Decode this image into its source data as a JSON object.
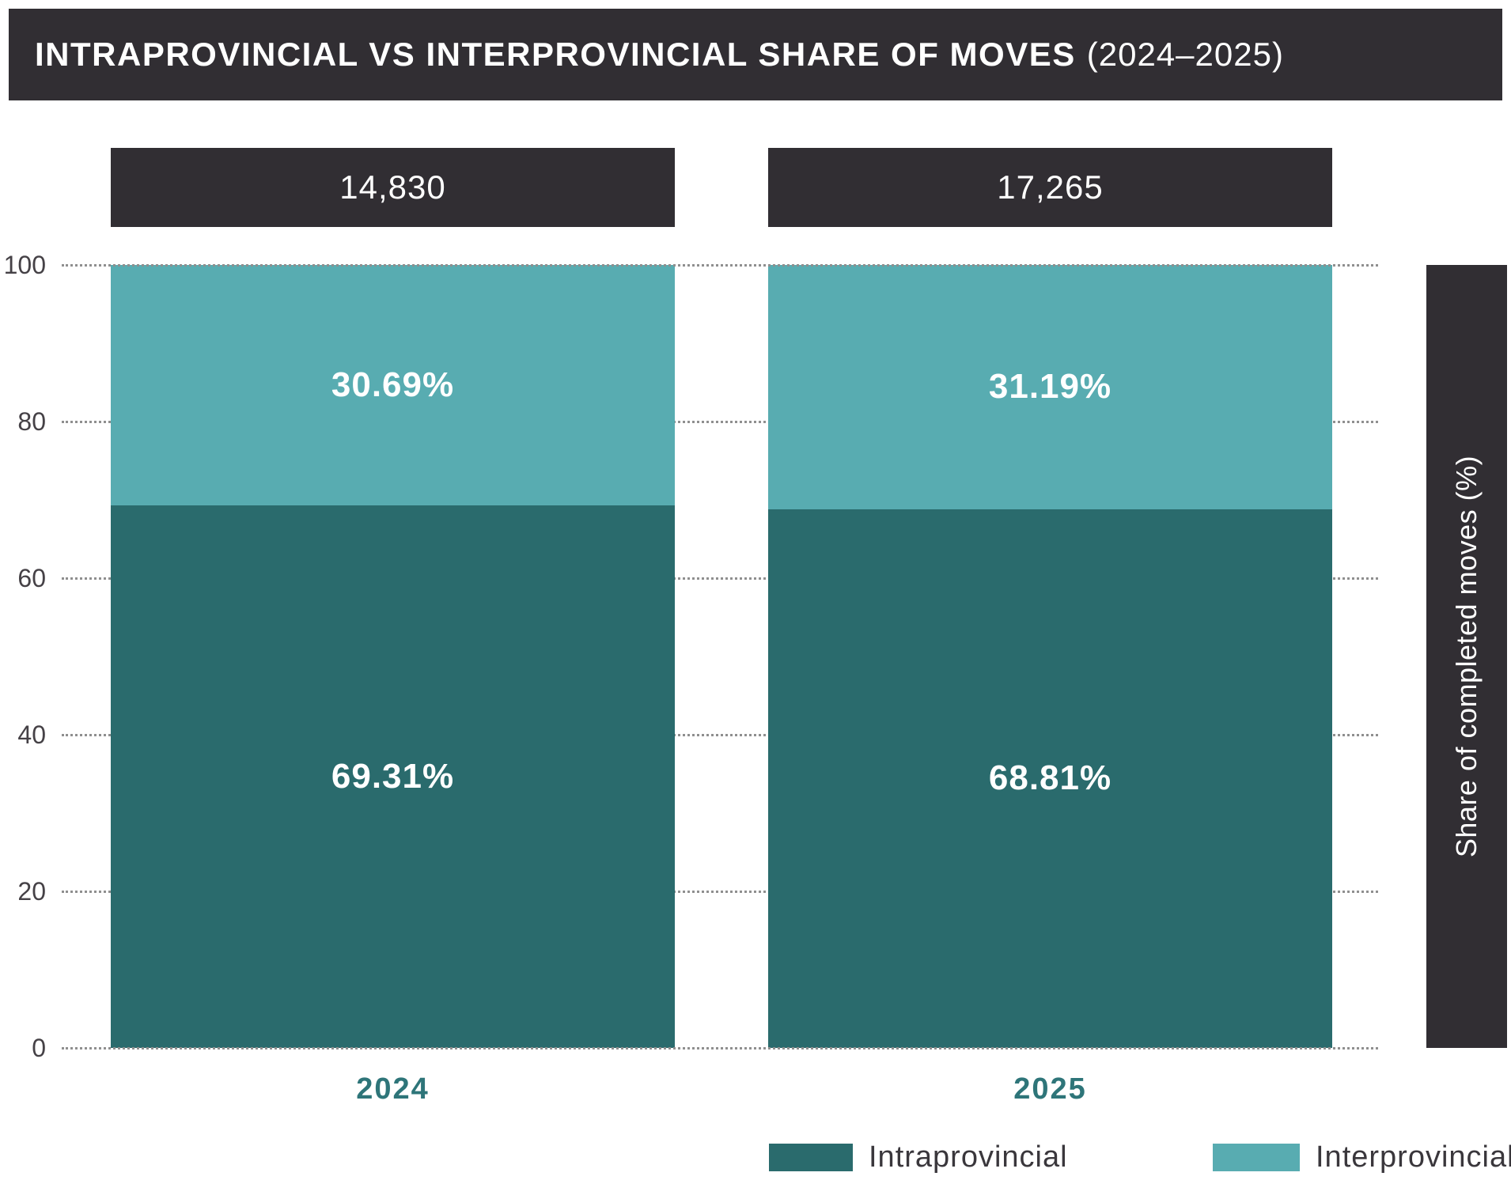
{
  "header": {
    "title": "INTRAPROVINCIAL VS INTERPROVINCIAL SHARE OF MOVES",
    "subtitle": "(2024–2025)"
  },
  "y_axis": {
    "label": "Share of completed moves (%)",
    "ticks": [
      "100",
      "80",
      "60",
      "40",
      "20",
      "0"
    ]
  },
  "bars": [
    {
      "year": "2024",
      "total": "14,830",
      "inter_label": "30.69%",
      "intra_label": "69.31%"
    },
    {
      "year": "2025",
      "total": "17,265",
      "inter_label": "31.19%",
      "intra_label": "68.81%"
    }
  ],
  "legend": {
    "items": [
      {
        "label": "Intraprovincial",
        "color": "#2a6b6d"
      },
      {
        "label": "Interprovincial",
        "color": "#58acb1"
      }
    ]
  },
  "colors": {
    "header_bg": "#312e33",
    "intraprovincial": "#2a6b6d",
    "interprovincial": "#58acb1",
    "year_label": "#2e7579",
    "gridline": "#8f8f8f",
    "background": "#ffffff"
  },
  "chart_data": {
    "type": "bar",
    "stacked": true,
    "title": "INTRAPROVINCIAL VS INTERPROVINCIAL SHARE OF MOVES (2024–2025)",
    "categories": [
      "2024",
      "2025"
    ],
    "series": [
      {
        "name": "Intraprovincial",
        "values": [
          69.31,
          68.81
        ],
        "color": "#2a6b6d"
      },
      {
        "name": "Interprovincial",
        "values": [
          30.69,
          31.19
        ],
        "color": "#58acb1"
      }
    ],
    "bar_totals": [
      14830,
      17265
    ],
    "bar_total_labels": [
      "14,830",
      "17,265"
    ],
    "xlabel": "",
    "ylabel": "Share of completed moves (%)",
    "ylim": [
      0,
      100
    ],
    "yticks": [
      0,
      20,
      40,
      60,
      80,
      100
    ],
    "grid": "dotted-horizontal",
    "legend_position": "bottom"
  }
}
